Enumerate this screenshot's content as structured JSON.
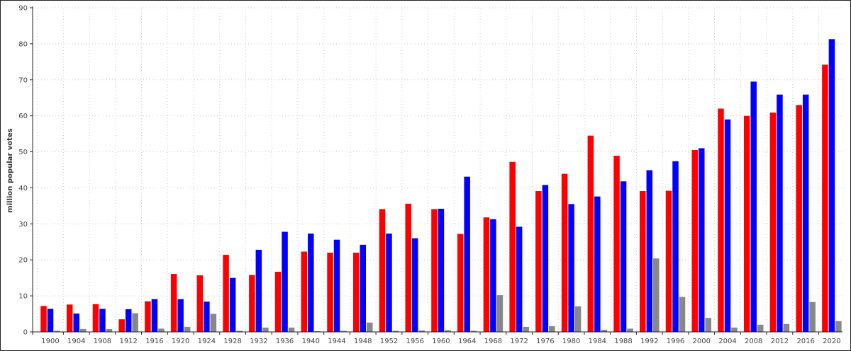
{
  "chart_data": {
    "type": "bar",
    "ylabel": "million popular votes",
    "xlabel": "",
    "ylim": [
      0,
      90
    ],
    "yticks": [
      0,
      10,
      20,
      30,
      40,
      50,
      60,
      70,
      80,
      90
    ],
    "grid": "dotted horizontal and vertical, light gray",
    "legend": "none",
    "categories": [
      "1900",
      "1904",
      "1908",
      "1912",
      "1916",
      "1920",
      "1924",
      "1928",
      "1932",
      "1936",
      "1940",
      "1944",
      "1948",
      "1952",
      "1956",
      "1960",
      "1964",
      "1968",
      "1972",
      "1976",
      "1980",
      "1984",
      "1988",
      "1992",
      "1996",
      "2000",
      "2004",
      "2008",
      "2012",
      "2016",
      "2020"
    ],
    "series": [
      {
        "color": "#ff0000",
        "values": [
          7.2,
          7.6,
          7.7,
          3.5,
          8.5,
          16.1,
          15.7,
          21.4,
          15.8,
          16.7,
          22.3,
          22.0,
          22.0,
          34.1,
          35.6,
          34.1,
          27.2,
          31.8,
          47.2,
          39.1,
          43.9,
          54.5,
          48.9,
          39.1,
          39.2,
          50.5,
          62.0,
          60.0,
          60.9,
          63.0,
          74.2
        ]
      },
      {
        "color": "#0000ff",
        "values": [
          6.4,
          5.1,
          6.4,
          6.3,
          9.1,
          9.1,
          8.4,
          15.0,
          22.8,
          27.8,
          27.3,
          25.6,
          24.2,
          27.3,
          26.0,
          34.2,
          43.1,
          31.3,
          29.2,
          40.8,
          35.5,
          37.6,
          41.8,
          44.9,
          47.4,
          51.0,
          59.0,
          69.5,
          65.9,
          65.9,
          81.3
        ]
      },
      {
        "color": "#888888",
        "values": [
          0.3,
          0.8,
          0.8,
          5.2,
          0.9,
          1.4,
          5.0,
          0.3,
          1.2,
          1.2,
          0.2,
          0.3,
          2.6,
          0.3,
          0.4,
          0.5,
          0.3,
          10.2,
          1.4,
          1.6,
          7.1,
          0.6,
          0.9,
          20.4,
          9.7,
          3.9,
          1.2,
          2.0,
          2.2,
          8.3,
          3.0
        ]
      }
    ]
  }
}
